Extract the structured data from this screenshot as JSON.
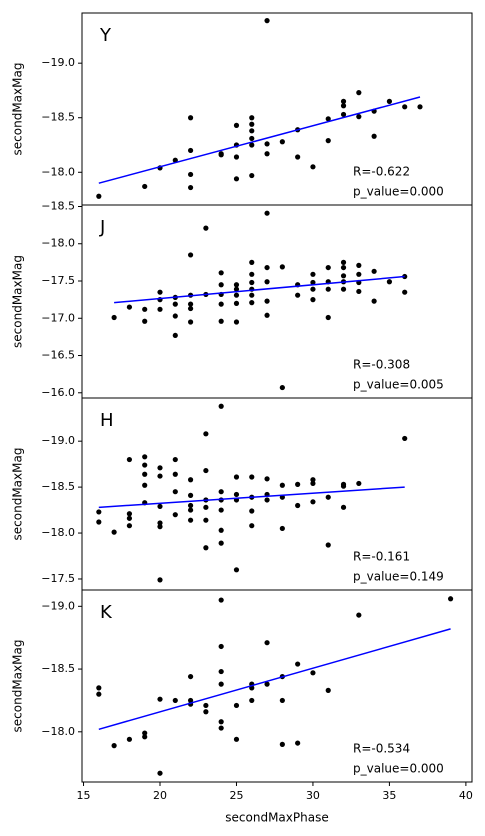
{
  "chart_data": [
    {
      "type": "scatter",
      "label": "Y",
      "ylabel": "secondMaxMag",
      "color": "#000000",
      "xlim": [
        14.9,
        40.4
      ],
      "ylim": [
        -17.7,
        -19.46
      ],
      "yticks": [
        {
          "value": -19.0,
          "label": "−19.0"
        },
        {
          "value": -18.5,
          "label": "−18.5"
        },
        {
          "value": -18.0,
          "label": "−18.0"
        }
      ],
      "x": [
        16,
        19,
        20,
        21,
        22,
        22,
        22,
        22,
        24,
        24,
        25,
        25,
        25,
        25,
        26,
        26,
        26,
        26,
        26,
        26,
        27,
        27,
        27,
        28,
        29,
        29,
        30,
        31,
        31,
        32,
        32,
        32,
        33,
        33,
        34,
        34,
        35,
        36,
        37
      ],
      "values": [
        -17.78,
        -17.87,
        -18.04,
        -18.11,
        -17.98,
        -17.86,
        -18.2,
        -18.5,
        -18.17,
        -18.16,
        -18.43,
        -18.25,
        -18.14,
        -17.94,
        -18.5,
        -18.44,
        -18.38,
        -18.31,
        -18.25,
        -17.97,
        -19.39,
        -18.26,
        -18.17,
        -18.28,
        -18.39,
        -18.14,
        -18.05,
        -18.49,
        -18.29,
        -18.65,
        -18.61,
        -18.53,
        -18.73,
        -18.51,
        -18.56,
        -18.33,
        -18.65,
        -18.6,
        -18.6
      ],
      "fit": {
        "color": "#0000ff",
        "x": [
          16,
          37
        ],
        "values": [
          -17.9,
          -18.69
        ]
      },
      "annotations": [
        "R=-0.622",
        "p_value=0.000"
      ]
    },
    {
      "type": "scatter",
      "label": "J",
      "ylabel": "secondMaxMag",
      "color": "#000000",
      "xlim": [
        14.9,
        40.4
      ],
      "ylim": [
        -15.93,
        -18.52
      ],
      "yticks": [
        {
          "value": -18.5,
          "label": "−18.5"
        },
        {
          "value": -18.0,
          "label": "−18.0"
        },
        {
          "value": -17.5,
          "label": "−17.5"
        },
        {
          "value": -17.0,
          "label": "−17.0"
        },
        {
          "value": -16.5,
          "label": "−16.5"
        },
        {
          "value": -16.0,
          "label": "−16.0"
        }
      ],
      "x": [
        17,
        18,
        19,
        19,
        20,
        20,
        20,
        21,
        21,
        21,
        21,
        22,
        22,
        22,
        22,
        22,
        23,
        23,
        24,
        24,
        24,
        24,
        24,
        25,
        25,
        25,
        25,
        25,
        26,
        26,
        26,
        26,
        26,
        26,
        27,
        27,
        27,
        27,
        27,
        28,
        28,
        29,
        29,
        30,
        30,
        30,
        30,
        31,
        31,
        31,
        31,
        32,
        32,
        32,
        32,
        32,
        33,
        33,
        33,
        33,
        34,
        34,
        35,
        36,
        36
      ],
      "values": [
        -17.01,
        -17.15,
        -17.12,
        -16.96,
        -17.35,
        -17.25,
        -17.12,
        -17.28,
        -17.19,
        -17.03,
        -16.77,
        -17.85,
        -17.31,
        -17.19,
        -17.13,
        -16.95,
        -18.21,
        -17.32,
        -17.61,
        -17.45,
        -17.32,
        -17.19,
        -16.96,
        -17.45,
        -17.39,
        -17.31,
        -17.2,
        -16.95,
        -17.75,
        -17.59,
        -17.48,
        -17.39,
        -17.31,
        -17.21,
        -18.41,
        -17.68,
        -17.49,
        -17.23,
        -17.04,
        -17.69,
        -16.07,
        -17.45,
        -17.31,
        -17.59,
        -17.48,
        -17.39,
        -17.25,
        -17.68,
        -17.49,
        -17.39,
        -17.01,
        -17.75,
        -17.68,
        -17.57,
        -17.49,
        -17.39,
        -17.71,
        -17.59,
        -17.48,
        -17.36,
        -17.63,
        -17.23,
        -17.49,
        -17.56,
        -17.35
      ],
      "fit": {
        "color": "#0000ff",
        "x": [
          17,
          36
        ],
        "values": [
          -17.21,
          -17.56
        ]
      },
      "annotations": [
        "R=-0.308",
        "p_value=0.005"
      ]
    },
    {
      "type": "scatter",
      "label": "H",
      "ylabel": "secondMaxMag",
      "color": "#000000",
      "xlim": [
        14.9,
        40.4
      ],
      "ylim": [
        -17.38,
        -19.47
      ],
      "yticks": [
        {
          "value": -19.0,
          "label": "−19.0"
        },
        {
          "value": -18.5,
          "label": "−18.5"
        },
        {
          "value": -18.0,
          "label": "−18.0"
        },
        {
          "value": -17.5,
          "label": "−17.5"
        }
      ],
      "x": [
        16,
        16,
        17,
        18,
        18,
        18,
        18,
        19,
        19,
        19,
        19,
        19,
        20,
        20,
        20,
        20,
        20,
        20,
        21,
        21,
        21,
        21,
        22,
        22,
        22,
        22,
        22,
        23,
        23,
        23,
        23,
        23,
        23,
        24,
        24,
        24,
        24,
        24,
        24,
        25,
        25,
        25,
        25,
        26,
        26,
        26,
        26,
        27,
        27,
        27,
        28,
        28,
        28,
        29,
        29,
        30,
        30,
        30,
        31,
        31,
        32,
        32,
        32,
        33,
        36
      ],
      "values": [
        -18.12,
        -18.23,
        -18.01,
        -18.8,
        -18.21,
        -18.16,
        -18.08,
        -18.83,
        -18.74,
        -18.64,
        -18.52,
        -18.33,
        -18.71,
        -18.62,
        -18.29,
        -18.11,
        -18.07,
        -17.49,
        -18.8,
        -18.64,
        -18.45,
        -18.2,
        -18.58,
        -18.41,
        -18.3,
        -18.25,
        -18.14,
        -19.08,
        -18.68,
        -18.36,
        -18.28,
        -18.14,
        -17.84,
        -19.38,
        -18.45,
        -18.36,
        -18.25,
        -18.03,
        -17.89,
        -18.61,
        -18.42,
        -18.36,
        -17.6,
        -18.61,
        -18.39,
        -18.24,
        -18.08,
        -18.59,
        -18.42,
        -18.36,
        -18.52,
        -18.39,
        -18.05,
        -18.53,
        -18.3,
        -18.58,
        -18.54,
        -18.34,
        -18.39,
        -17.87,
        -18.53,
        -18.51,
        -18.28,
        -18.54,
        -19.03
      ],
      "fit": {
        "color": "#0000ff",
        "x": [
          16,
          36
        ],
        "values": [
          -18.28,
          -18.5
        ]
      },
      "annotations": [
        "R=-0.161",
        "p_value=0.149"
      ]
    },
    {
      "type": "scatter",
      "label": "K",
      "ylabel": "secondMaxMag",
      "xlabel": "secondMaxPhase",
      "color": "#000000",
      "xlim": [
        14.9,
        40.4
      ],
      "ylim": [
        -17.6,
        -19.13
      ],
      "xticks": [
        15,
        20,
        25,
        30,
        35,
        40
      ],
      "yticks": [
        {
          "value": -19.0,
          "label": "−19.0"
        },
        {
          "value": -18.5,
          "label": "−18.5"
        },
        {
          "value": -18.0,
          "label": "−18.0"
        }
      ],
      "x": [
        16,
        16,
        17,
        18,
        19,
        19,
        20,
        20,
        21,
        22,
        22,
        22,
        23,
        23,
        24,
        24,
        24,
        24,
        24,
        24,
        25,
        25,
        26,
        26,
        26,
        27,
        27,
        28,
        28,
        28,
        29,
        29,
        30,
        31,
        33,
        39
      ],
      "values": [
        -18.35,
        -18.3,
        -17.89,
        -17.94,
        -17.99,
        -17.96,
        -18.26,
        -17.67,
        -18.25,
        -18.44,
        -18.25,
        -18.22,
        -18.21,
        -18.16,
        -19.05,
        -18.68,
        -18.48,
        -18.38,
        -18.08,
        -18.03,
        -18.21,
        -17.94,
        -18.38,
        -18.35,
        -18.25,
        -18.71,
        -18.38,
        -18.44,
        -18.25,
        -17.9,
        -18.54,
        -17.91,
        -18.47,
        -18.33,
        -18.93,
        -19.06
      ],
      "fit": {
        "color": "#0000ff",
        "x": [
          16,
          39
        ],
        "values": [
          -18.02,
          -18.82
        ]
      },
      "annotations": [
        "R=-0.534",
        "p_value=0.000"
      ]
    }
  ]
}
